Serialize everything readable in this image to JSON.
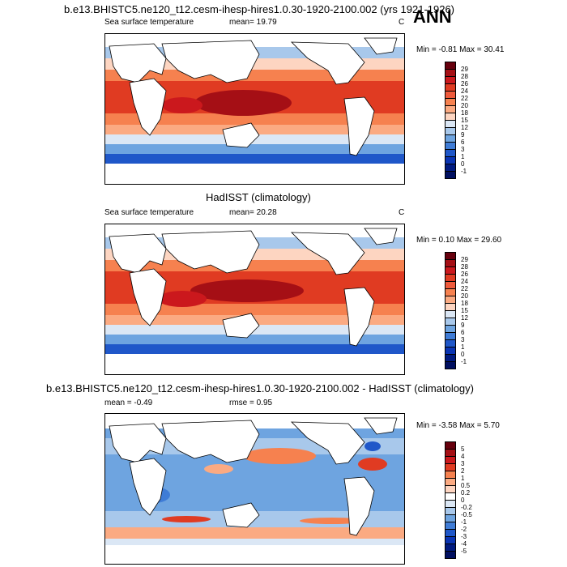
{
  "annotation": "ANN",
  "panels": [
    {
      "title": "b.e13.BHISTC5.ne120_t12.cesm-ihesp-hires1.0.30-1920-2100.002 (yrs 1921-1926)",
      "left_label": "Sea surface temperature",
      "center_label": "mean=  19.79",
      "right_label": "C",
      "minmax": "Min =  -0.81 Max =  30.41",
      "colorbar_labels": [
        "29",
        "28",
        "26",
        "24",
        "22",
        "20",
        "18",
        "15",
        "12",
        "9",
        "6",
        "3",
        "1",
        "0",
        "-1"
      ]
    },
    {
      "title": "HadISST (climatology)",
      "left_label": "Sea surface temperature",
      "center_label": "mean=  20.28",
      "right_label": "C",
      "minmax": "Min =   0.10 Max =  29.60",
      "colorbar_labels": [
        "29",
        "28",
        "26",
        "24",
        "22",
        "20",
        "18",
        "15",
        "12",
        "9",
        "6",
        "3",
        "1",
        "0",
        "-1"
      ]
    },
    {
      "title": "b.e13.BHISTC5.ne120_t12.cesm-ihesp-hires1.0.30-1920-2100.002 - HadISST (climatology)",
      "left_label": "mean =  -0.49",
      "center_label": "rmse =    0.95",
      "right_label": "",
      "minmax": "Min =  -3.58 Max =   5.70",
      "colorbar_labels": [
        "5",
        "4",
        "3",
        "2",
        "1",
        "0.5",
        "0.2",
        "0",
        "-0.2",
        "-0.5",
        "-1",
        "-2",
        "-3",
        "-4",
        "-5"
      ]
    }
  ],
  "colors": {
    "sst_scale": [
      "#67000d",
      "#a50f15",
      "#cb181d",
      "#e03b22",
      "#ef5a3b",
      "#f6814f",
      "#fbaa82",
      "#fdd5c1",
      "#dbe7f5",
      "#a8c8eb",
      "#6ea4e0",
      "#3f7cd6",
      "#1f57c9",
      "#0a34b3",
      "#001a80",
      "#000f60"
    ],
    "diff_scale": [
      "#67000d",
      "#a50f15",
      "#cb181d",
      "#e03b22",
      "#f6814f",
      "#fbaa82",
      "#fdd5c1",
      "#ffffff",
      "#dbe7f5",
      "#a8c8eb",
      "#6ea4e0",
      "#3f7cd6",
      "#1f57c9",
      "#0a34b3",
      "#001a80",
      "#000f60"
    ]
  }
}
